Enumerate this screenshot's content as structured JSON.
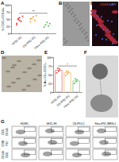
{
  "panel_labels": [
    "A",
    "B",
    "C",
    "D",
    "E",
    "F",
    "G"
  ],
  "chart_data": [
    {
      "type": "strip",
      "ylabel": "% CD31+/CD144+",
      "categories": [
        "hESC-EC",
        "CB-iPSC-EC",
        "Fibro-iPSC-EC"
      ],
      "groups": [
        [
          35,
          48,
          55,
          42,
          60,
          30,
          52,
          45
        ],
        [
          40,
          52,
          58,
          45,
          62,
          50
        ],
        [
          22,
          30,
          38,
          26,
          34
        ]
      ],
      "colors": [
        "#e8423c",
        "#f2a33a",
        "#5cb85c"
      ],
      "ylim": [
        0,
        100
      ],
      "yticks": [
        0,
        25,
        50,
        75,
        100
      ],
      "annotations": [
        "**"
      ]
    },
    {
      "type": "bar",
      "ylabel": "% Ac-LDL+/CD31+",
      "categories": [
        "hESC-EC",
        "CB-iPSC-EC",
        "Fibro-iPSC-EC"
      ],
      "values": [
        62,
        55,
        32
      ],
      "points": [
        [
          55,
          68,
          60,
          66
        ],
        [
          48,
          60,
          52,
          58
        ],
        [
          25,
          38,
          30,
          35
        ]
      ],
      "colors": [
        "#e8423c",
        "#f2a33a",
        "#5cb85c"
      ],
      "ylim": [
        0,
        100
      ],
      "yticks": [
        0,
        25,
        50,
        75,
        100
      ],
      "annotations": [
        "*"
      ]
    }
  ],
  "image_c": {
    "label_red": "CD31",
    "label_blue": "DAPI"
  },
  "flow": {
    "columns": [
      "HUVEC",
      "hESC-H9",
      "CB-iPS 6.2",
      "Fibro-iPSC IMR90-1"
    ],
    "rows": [
      {
        "y": "CD31",
        "x": "CD146"
      },
      {
        "y": "CD90",
        "x": "FSC"
      },
      {
        "y": "CD144",
        "x": "CD31"
      }
    ]
  }
}
